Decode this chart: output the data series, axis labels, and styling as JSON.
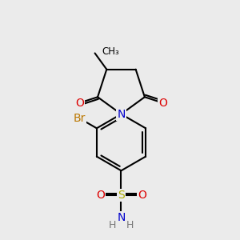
{
  "bg_color": "#ebebeb",
  "atom_colors": {
    "C": "#000000",
    "N": "#0000cc",
    "O": "#dd0000",
    "Br": "#bb7700",
    "S": "#aaaa00",
    "H": "#777777"
  },
  "bond_color": "#000000",
  "figsize": [
    3.0,
    3.0
  ],
  "dpi": 100
}
